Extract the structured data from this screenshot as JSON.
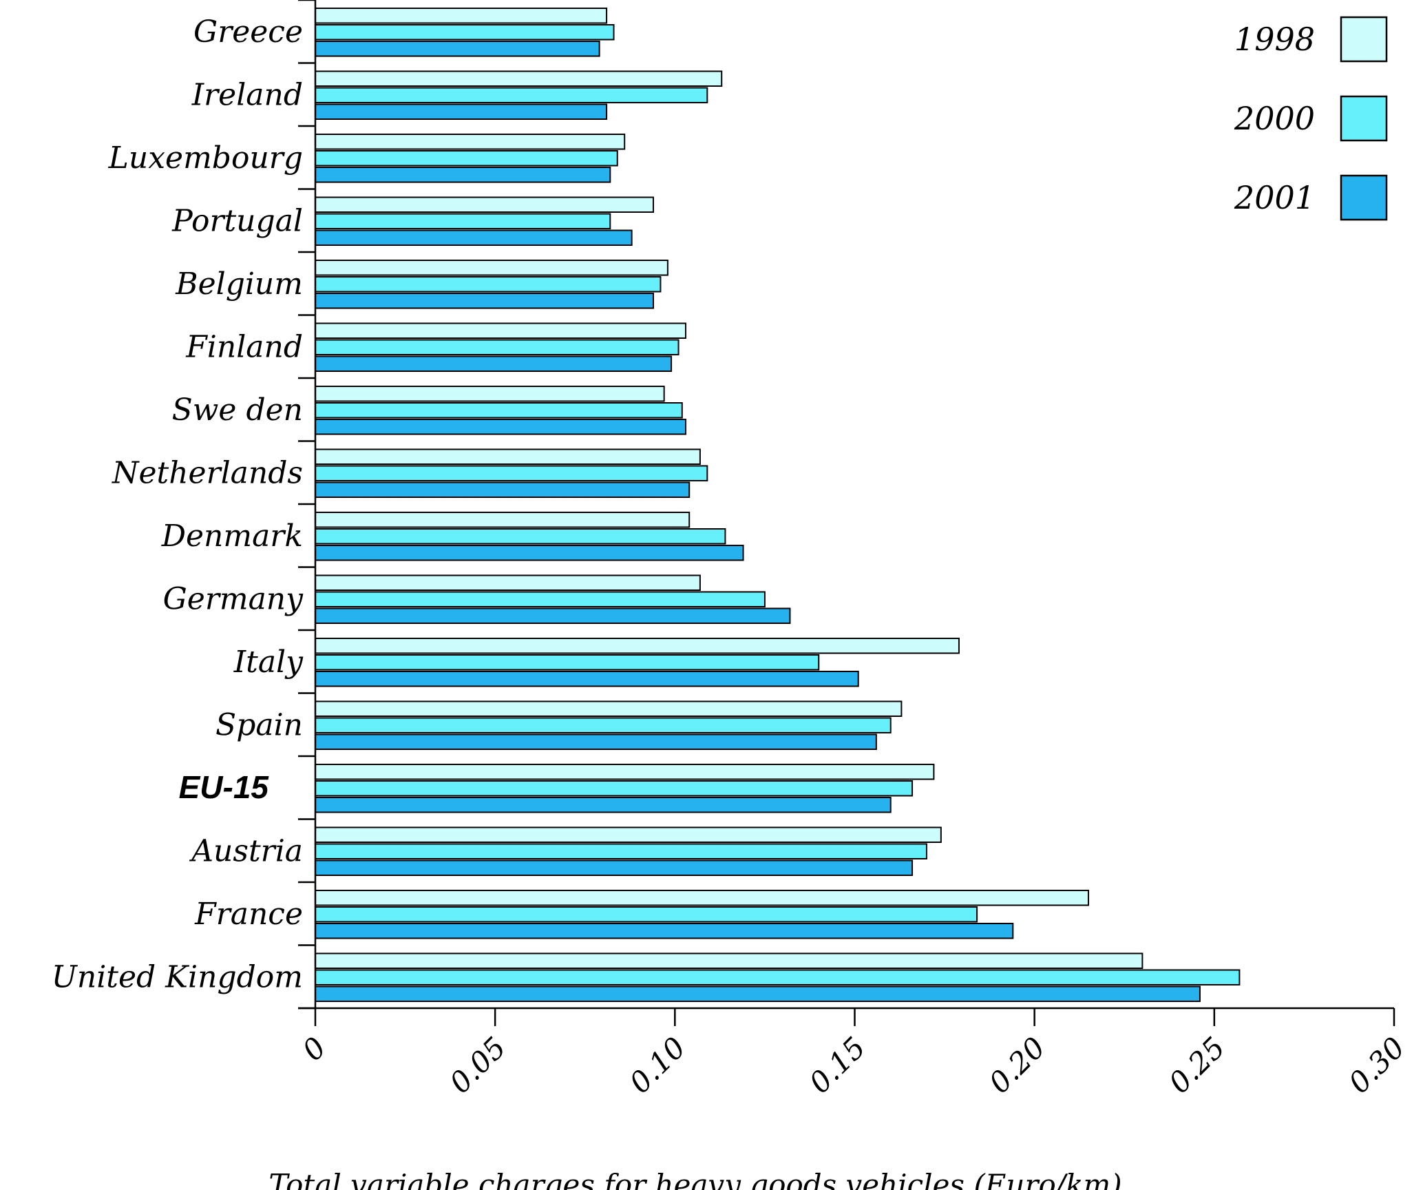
{
  "chart_data": {
    "type": "bar",
    "orientation": "horizontal",
    "title": "",
    "xlabel": "Total variable charges for heavy goods vehicles (Euro/km)",
    "ylabel": "",
    "xlim": [
      0,
      0.3
    ],
    "x_ticks": [
      "0",
      "0.05",
      "0.10",
      "0.15",
      "0.20",
      "0.25",
      "0.30"
    ],
    "x_tick_values": [
      0,
      0.05,
      0.1,
      0.15,
      0.2,
      0.25,
      0.3
    ],
    "grid": false,
    "legend_position": "top-right",
    "categories": [
      "Greece",
      "Ireland",
      "Luxembourg",
      "Portugal",
      "Belgium",
      "Finland",
      "Swe den",
      "Netherlands",
      "Denmark",
      "Germany",
      "Italy",
      "Spain",
      "EU-15",
      "Austria",
      "France",
      "United Kingdom"
    ],
    "emphasized_category": "EU-15",
    "series": [
      {
        "name": "1998",
        "color": "#ccfcfc",
        "values": [
          0.081,
          0.113,
          0.086,
          0.094,
          0.098,
          0.103,
          0.097,
          0.107,
          0.104,
          0.107,
          0.179,
          0.163,
          0.172,
          0.174,
          0.215,
          0.23
        ]
      },
      {
        "name": "2000",
        "color": "#66f0fc",
        "values": [
          0.083,
          0.109,
          0.084,
          0.082,
          0.096,
          0.101,
          0.102,
          0.109,
          0.114,
          0.125,
          0.14,
          0.16,
          0.166,
          0.17,
          0.184,
          0.257
        ]
      },
      {
        "name": "2001",
        "color": "#25b2ee",
        "values": [
          0.079,
          0.081,
          0.082,
          0.088,
          0.094,
          0.099,
          0.103,
          0.104,
          0.119,
          0.132,
          0.151,
          0.156,
          0.16,
          0.166,
          0.194,
          0.246
        ]
      }
    ]
  }
}
